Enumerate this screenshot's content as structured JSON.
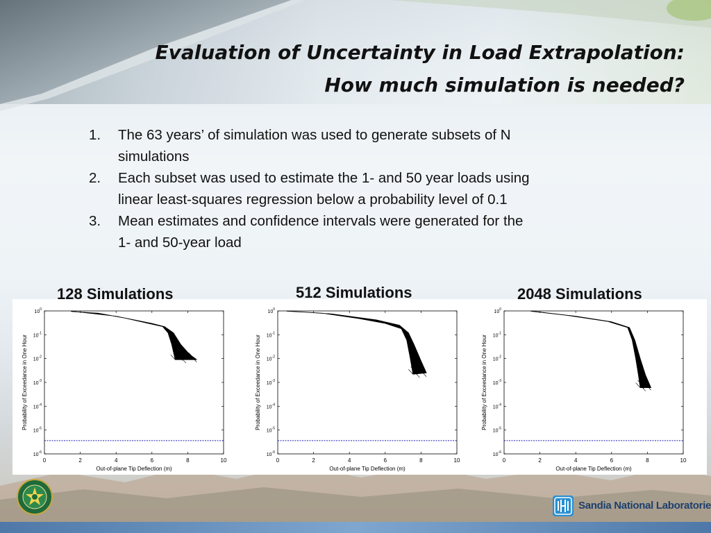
{
  "slide": {
    "title_line1": "Evaluation of Uncertainty in Load Extrapolation:",
    "title_line2": "How much simulation is needed?",
    "bullets": [
      {
        "num": "1.",
        "line1": "The 63 years’ of simulation was used to generate subsets of N",
        "line2": "simulations"
      },
      {
        "num": "2.",
        "line1": "Each subset was used to estimate the 1- and 50 year loads using",
        "line2": "linear least-squares regression below a probability level of 0.1"
      },
      {
        "num": "3.",
        "line1": "Mean estimates and confidence intervals were generated for the",
        "line2": "1- and 50-year load"
      }
    ],
    "logos": {
      "left": "doe-seal",
      "right_text": "Sandia National Laboratories"
    }
  },
  "colors": {
    "curve": "#000000",
    "threshold": "#1f1fb4",
    "accent": "#1d3f6e"
  },
  "chart_data": [
    {
      "type": "line",
      "title": "128 Simulations",
      "xlabel": "Out-of-plane Tip Deflection (m)",
      "ylabel": "Probability of Exceedance in One Hour",
      "xlim": [
        0,
        10
      ],
      "ylim": [
        1e-06,
        1
      ],
      "yscale": "log",
      "xticks": [
        "0",
        "2",
        "4",
        "6",
        "8",
        "10"
      ],
      "yticks": [
        "10^0",
        "10^-1",
        "10^-2",
        "10^-3",
        "10^-4",
        "10^-5",
        "10^-6"
      ],
      "threshold_y": 3.6e-06,
      "band": {
        "upper": [
          [
            1.5,
            0.98
          ],
          [
            4.0,
            0.6
          ],
          [
            6.0,
            0.3
          ],
          [
            6.7,
            0.22
          ],
          [
            7.2,
            0.12
          ],
          [
            7.6,
            0.04
          ],
          [
            8.1,
            0.015
          ],
          [
            8.5,
            0.009
          ]
        ],
        "lower": [
          [
            1.5,
            0.95
          ],
          [
            3.0,
            0.8
          ],
          [
            4.5,
            0.5
          ],
          [
            5.8,
            0.3
          ],
          [
            6.6,
            0.22
          ],
          [
            6.9,
            0.12
          ],
          [
            7.1,
            0.04
          ],
          [
            7.3,
            0.009
          ]
        ]
      }
    },
    {
      "type": "line",
      "title": "512 Simulations",
      "xlabel": "Out-of-plane Tip Deflection (m)",
      "ylabel": "Probability of Exceedance in One Hour",
      "xlim": [
        0,
        10
      ],
      "ylim": [
        1e-06,
        1
      ],
      "yscale": "log",
      "xticks": [
        "0",
        "2",
        "4",
        "6",
        "8",
        "10"
      ],
      "yticks": [
        "10^0",
        "10^-1",
        "10^-2",
        "10^-3",
        "10^-4",
        "10^-5",
        "10^-6"
      ],
      "threshold_y": 3.6e-06,
      "band": {
        "upper": [
          [
            0.5,
            0.99
          ],
          [
            3.0,
            0.75
          ],
          [
            5.5,
            0.42
          ],
          [
            6.8,
            0.25
          ],
          [
            7.3,
            0.12
          ],
          [
            7.6,
            0.04
          ],
          [
            8.0,
            0.008
          ],
          [
            8.3,
            0.0025
          ]
        ],
        "lower": [
          [
            0.5,
            0.98
          ],
          [
            2.5,
            0.8
          ],
          [
            4.5,
            0.48
          ],
          [
            6.0,
            0.3
          ],
          [
            6.9,
            0.18
          ],
          [
            7.2,
            0.06
          ],
          [
            7.4,
            0.01
          ],
          [
            7.55,
            0.0022
          ]
        ]
      }
    },
    {
      "type": "line",
      "title": "2048 Simulations",
      "xlabel": "Out-of-plane Tip Deflection (m)",
      "ylabel": "Probability of Exceedance in One Hour",
      "xlim": [
        0,
        10
      ],
      "ylim": [
        1e-06,
        1
      ],
      "yscale": "log",
      "xticks": [
        "0",
        "2",
        "4",
        "6",
        "8",
        "10"
      ],
      "yticks": [
        "10^0",
        "10^-1",
        "10^-2",
        "10^-3",
        "10^-4",
        "10^-5",
        "10^-6"
      ],
      "threshold_y": 3.6e-06,
      "band": {
        "upper": [
          [
            1.5,
            0.99
          ],
          [
            4.0,
            0.6
          ],
          [
            6.0,
            0.35
          ],
          [
            7.0,
            0.2
          ],
          [
            7.3,
            0.06
          ],
          [
            7.6,
            0.01
          ],
          [
            7.9,
            0.002
          ],
          [
            8.2,
            0.0006
          ]
        ],
        "lower": [
          [
            1.5,
            0.97
          ],
          [
            3.5,
            0.65
          ],
          [
            5.8,
            0.36
          ],
          [
            6.9,
            0.2
          ],
          [
            7.15,
            0.06
          ],
          [
            7.35,
            0.01
          ],
          [
            7.5,
            0.002
          ],
          [
            7.6,
            0.0006
          ]
        ]
      }
    }
  ]
}
